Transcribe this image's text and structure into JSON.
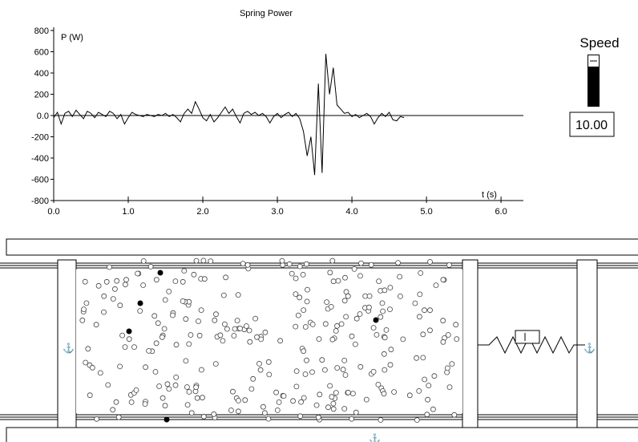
{
  "chart_data": {
    "type": "line",
    "title": "Spring Power",
    "ylabel": "P (W)",
    "xlabel": "t (s)",
    "color": "#000000",
    "x": [
      0,
      0.05,
      0.1,
      0.15,
      0.2,
      0.25,
      0.3,
      0.35,
      0.4,
      0.45,
      0.5,
      0.55,
      0.6,
      0.65,
      0.7,
      0.75,
      0.8,
      0.85,
      0.9,
      0.95,
      1,
      1.05,
      1.1,
      1.15,
      1.2,
      1.25,
      1.3,
      1.35,
      1.4,
      1.45,
      1.5,
      1.55,
      1.6,
      1.65,
      1.7,
      1.75,
      1.8,
      1.85,
      1.9,
      1.95,
      2,
      2.05,
      2.1,
      2.15,
      2.2,
      2.25,
      2.3,
      2.35,
      2.4,
      2.45,
      2.5,
      2.55,
      2.6,
      2.65,
      2.7,
      2.75,
      2.8,
      2.85,
      2.9,
      2.95,
      3,
      3.05,
      3.1,
      3.15,
      3.2,
      3.25,
      3.3,
      3.35,
      3.4,
      3.45,
      3.5,
      3.55,
      3.6,
      3.65,
      3.7,
      3.75,
      3.8,
      3.85,
      3.9,
      3.95,
      4,
      4.05,
      4.1,
      4.15,
      4.2,
      4.25,
      4.3,
      4.35,
      4.4,
      4.45,
      4.5,
      4.55,
      4.6,
      4.65,
      4.7
    ],
    "values": [
      -20,
      30,
      -80,
      20,
      40,
      -10,
      50,
      10,
      -30,
      40,
      20,
      -20,
      30,
      10,
      -10,
      40,
      20,
      -30,
      10,
      -80,
      -20,
      30,
      10,
      0,
      -10,
      10,
      0,
      -10,
      10,
      0,
      20,
      -10,
      10,
      -20,
      -60,
      20,
      60,
      20,
      130,
      60,
      -20,
      -50,
      10,
      -60,
      -20,
      30,
      80,
      20,
      60,
      -10,
      -70,
      20,
      40,
      10,
      30,
      0,
      20,
      -10,
      -70,
      -10,
      20,
      -20,
      10,
      30,
      -10,
      20,
      -30,
      -150,
      -380,
      -200,
      -560,
      300,
      -540,
      580,
      200,
      450,
      100,
      60,
      20,
      30,
      -10,
      10,
      -20,
      0,
      20,
      -10,
      -80,
      -20,
      20,
      -10,
      30,
      -40,
      -50,
      -10,
      -20
    ],
    "xlim": [
      0,
      6.3
    ],
    "ylim": [
      -800,
      800
    ],
    "xticks": [
      {
        "value": 0,
        "label": "0.0"
      },
      {
        "value": 1,
        "label": "1.0"
      },
      {
        "value": 2,
        "label": "2.0"
      },
      {
        "value": 3,
        "label": "3.0"
      },
      {
        "value": 4,
        "label": "4.0"
      },
      {
        "value": 5,
        "label": "5.0"
      },
      {
        "value": 6,
        "label": "6.0"
      }
    ],
    "yticks": [
      -800,
      -600,
      -400,
      -200,
      {
        "value": 0,
        "label": "0.0"
      },
      200,
      400,
      600,
      800
    ]
  },
  "speed": {
    "label": "Speed",
    "value": "10.00"
  }
}
